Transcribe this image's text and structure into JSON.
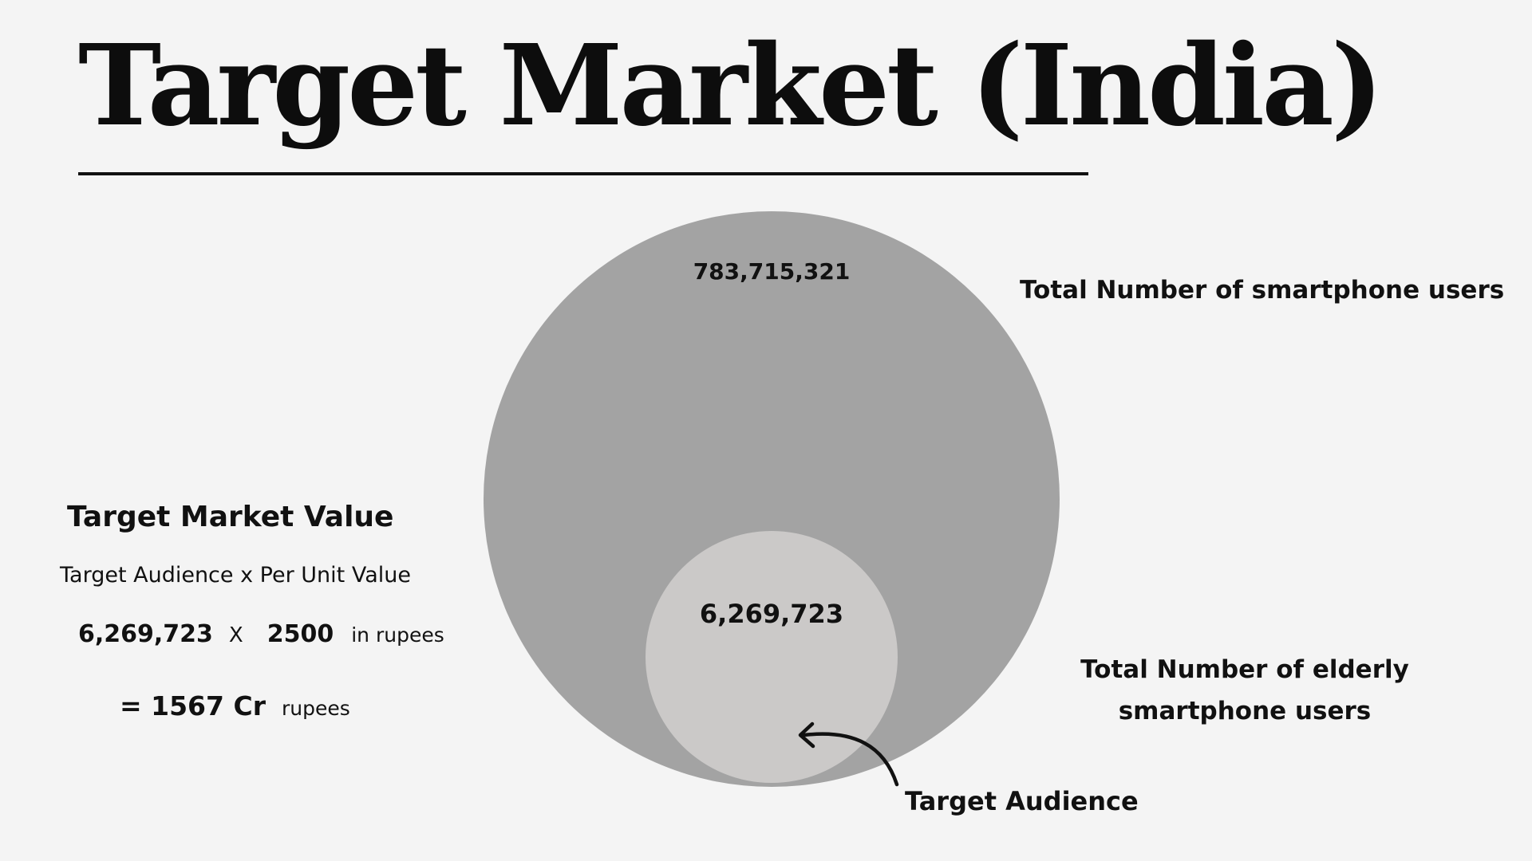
{
  "title": "Target Market (India)",
  "diagram": {
    "outer": {
      "value": "783,715,321",
      "label": "Total Number of smartphone users",
      "color": "#a3a3a3"
    },
    "inner": {
      "value": "6,269,723",
      "label_line1": "Total Number of elderly",
      "label_line2": "smartphone users",
      "color": "#cbc9c8"
    },
    "arrow_label": "Target Audience"
  },
  "market_value": {
    "heading": "Target Market Value",
    "formula": "Target Audience  x Per Unit Value",
    "audience": "6,269,723",
    "operator": "X",
    "unit_value": "2500",
    "unit_note": "in rupees",
    "result": "= 1567 Cr",
    "result_unit": "rupees"
  }
}
